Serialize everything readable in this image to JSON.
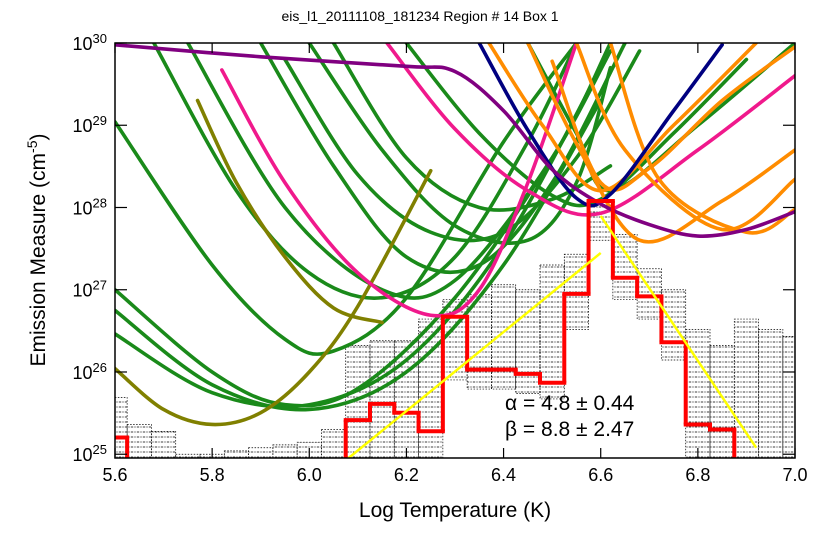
{
  "chart_data": {
    "type": "line",
    "title": "eis_l1_20111108_181234 Region # 14 Box 1",
    "x_label": "Log Temperature (K)",
    "y_label": {
      "text": "Emission Measure (cm",
      "superscript": "-5",
      "suffix": ")"
    },
    "yscale": "log",
    "xlim": [
      5.6,
      7.0
    ],
    "ylim": [
      9e+24,
      1e+30
    ],
    "xticks": [
      5.6,
      5.8,
      {
        "value": 6.0,
        "label": "6.0"
      },
      6.2,
      6.4,
      6.6,
      6.8,
      {
        "value": 7.0,
        "label": "7.0"
      }
    ],
    "yticks": [
      {
        "value": 1e+25,
        "label": "10",
        "exponent": "25"
      },
      {
        "value": 1e+26,
        "label": "10",
        "exponent": "26"
      },
      {
        "value": 1e+27,
        "label": "10",
        "exponent": "27"
      },
      {
        "value": 1e+28,
        "label": "10",
        "exponent": "28"
      },
      {
        "value": 1e+29,
        "label": "10",
        "exponent": "29"
      },
      {
        "value": 1e+30,
        "label": "10",
        "exponent": "30"
      }
    ],
    "mc_range": {
      "color": "#000000",
      "x": [
        5.6,
        5.65,
        5.7,
        5.75,
        5.8,
        5.85,
        5.9,
        5.95,
        6.0,
        6.05,
        6.1,
        6.15,
        6.2,
        6.25,
        6.3,
        6.35,
        6.4,
        6.45,
        6.5,
        6.55,
        6.6,
        6.65,
        6.7,
        6.75,
        6.8,
        6.85,
        6.9,
        6.95,
        7.0
      ],
      "low": [
        1e+24,
        1e+24,
        1e+24,
        1e+24,
        1e+24,
        1e+24,
        1e+24,
        1e+24,
        1e+24,
        1e+24,
        1e+24,
        1e+24,
        1e+24,
        1e+24,
        8e+25,
        6.2e+25,
        6.2e+25,
        5.5e+25,
        4.7e+25,
        3.3e+26,
        4e+27,
        7.6e+26,
        4.4e+26,
        1.4e+26,
        1e+24,
        1e+24,
        1e+24,
        1e+24,
        1e+24
      ],
      "high": [
        4.9e+25,
        2.3e+25,
        1.9e+25,
        1e+25,
        1e+25,
        1.1e+25,
        1.2e+25,
        1.3e+25,
        1.4e+25,
        2e+25,
        2.1e+26,
        2.4e+26,
        2.4e+26,
        4.4e+26,
        7.6e+26,
        8.7e+26,
        1.15e+27,
        1e+27,
        2e+27,
        2.7e+27,
        1.07e+28,
        4.7e+27,
        1.8e+27,
        1e+27,
        3.3e+26,
        2.1e+26,
        4.4e+26,
        3.3e+26,
        2.7e+26
      ]
    },
    "series": [
      {
        "color": "#1a8a1a",
        "x": [
          5.6,
          5.8,
          5.95,
          6.05,
          6.2,
          6.4,
          6.55
        ],
        "values": [
          1.1e+29,
          2e+27,
          2.5e+26,
          1.8e+26,
          8e+26,
          6.3e+28,
          1e+30
        ]
      },
      {
        "color": "#1a8a1a",
        "x": [
          5.6,
          5.8,
          5.95,
          6.1,
          6.3,
          6.5,
          6.62
        ],
        "values": [
          1e+27,
          1e+26,
          4e+25,
          6.3e+25,
          8e+26,
          4e+28,
          8e+29
        ]
      },
      {
        "color": "#1a8a1a",
        "x": [
          5.6,
          5.8,
          6.0,
          6.2,
          6.4,
          6.6
        ],
        "values": [
          5.6e+26,
          7e+25,
          3.5e+25,
          1e+26,
          2e+27,
          2e+29
        ]
      },
      {
        "color": "#1a8a1a",
        "x": [
          5.6,
          5.8,
          6.0,
          6.2,
          6.4,
          6.6
        ],
        "values": [
          2.9e+26,
          5.6e+25,
          4e+25,
          1.4e+26,
          3.5e+27,
          5e+29
        ]
      },
      {
        "color": "#1a8a1a",
        "x": [
          5.68,
          5.85,
          6.0,
          6.15,
          6.3,
          6.45,
          6.55
        ],
        "values": [
          1e+30,
          1.6e+28,
          1.6e+27,
          8e+26,
          2.5e+27,
          6.3e+28,
          1e+30
        ]
      },
      {
        "color": "#1a8a1a",
        "x": [
          5.75,
          5.95,
          6.15,
          6.3,
          6.5,
          6.62
        ],
        "values": [
          1e+30,
          1e+28,
          1e+27,
          1.3e+27,
          4e+28,
          1e+30
        ]
      },
      {
        "color": "#1a8a1a",
        "x": [
          5.9,
          6.05,
          6.2,
          6.35,
          6.5,
          6.65
        ],
        "values": [
          1e+30,
          3.2e+28,
          2.5e+27,
          2e+27,
          2e+28,
          1e+30
        ]
      },
      {
        "color": "#1a8a1a",
        "x": [
          5.95,
          6.1,
          6.25,
          6.4,
          6.55,
          6.68
        ],
        "values": [
          6.3e+29,
          2.5e+28,
          5e+27,
          5e+27,
          4e+28,
          8e+29
        ]
      },
      {
        "color": "#1a8a1a",
        "x": [
          6.05,
          6.2,
          6.35,
          6.5,
          6.62
        ],
        "values": [
          1e+30,
          4e+28,
          1e+28,
          1.26e+28,
          3.2e+28
        ]
      },
      {
        "color": "#1a8a1a",
        "x": [
          6.2,
          6.35,
          6.5,
          6.6,
          6.75,
          6.9
        ],
        "values": [
          1e+30,
          8e+28,
          1.4e+28,
          1.26e+28,
          8e+28,
          6.3e+29
        ]
      },
      {
        "color": "#1a8a1a",
        "x": [
          6.45,
          6.55,
          6.62,
          6.8,
          7.0
        ],
        "values": [
          1e+30,
          8e+28,
          1.6e+28,
          1e+29,
          1e+30
        ]
      },
      {
        "color": "#1a8a1a",
        "x": [
          6.0,
          6.15,
          6.3,
          6.45,
          6.55,
          6.62
        ],
        "values": [
          1e+30,
          5e+28,
          6e+27,
          4e+27,
          2e+28,
          5e+29
        ]
      },
      {
        "color": "#808000",
        "x": [
          5.6,
          5.7,
          5.8,
          5.9,
          6.0,
          6.1,
          6.25
        ],
        "values": [
          1.1e+26,
          3.5e+25,
          2.3e+25,
          3.2e+25,
          1e+26,
          6.3e+26,
          2.8e+28
        ]
      },
      {
        "color": "#808000",
        "x": [
          5.77,
          5.85,
          5.95,
          6.05,
          6.15
        ],
        "values": [
          2e+29,
          2e+28,
          2.5e+27,
          6e+26,
          4e+26
        ]
      },
      {
        "color": "#f0198c",
        "x": [
          5.82,
          5.95,
          6.1,
          6.25,
          6.35,
          6.45,
          6.55
        ],
        "values": [
          4.7e+29,
          2e+28,
          1.6e+27,
          4.9e+26,
          1e+27,
          2e+28,
          1e+30
        ]
      },
      {
        "color": "#f0198c",
        "x": [
          6.16,
          6.3,
          6.45,
          6.6,
          6.8,
          7.0
        ],
        "values": [
          1e+30,
          9e+28,
          1.6e+28,
          8.5e+27,
          5e+28,
          4e+29
        ]
      },
      {
        "color": "#ff8c00",
        "x": [
          6.37,
          6.48,
          6.6,
          6.75,
          6.92
        ],
        "values": [
          1e+30,
          1e+29,
          1.6e+28,
          1e+29,
          1e+30
        ]
      },
      {
        "color": "#ff8c00",
        "x": [
          6.45,
          6.55,
          6.68,
          6.85,
          7.0
        ],
        "values": [
          1e+30,
          6e+28,
          4e+27,
          1.2e+28,
          5e+28
        ]
      },
      {
        "color": "#ff8c00",
        "x": [
          6.55,
          6.65,
          6.85,
          7.0
        ],
        "values": [
          1e+30,
          5e+28,
          5.4e+27,
          2.2e+28
        ]
      },
      {
        "color": "#ff8c00",
        "x": [
          6.5,
          6.6,
          6.7,
          6.85,
          7.0
        ],
        "values": [
          6e+29,
          2e+28,
          3e+28,
          2e+29,
          9e+29
        ]
      },
      {
        "color": "#ff8c00",
        "x": [
          6.62,
          6.72,
          6.9,
          7.0
        ],
        "values": [
          1e+30,
          2.2e+28,
          5e+27,
          9.5e+27
        ]
      },
      {
        "color": "#000080",
        "x": [
          6.35,
          6.45,
          6.55,
          6.62,
          6.75,
          6.85
        ],
        "values": [
          1e+30,
          8.7e+28,
          1.3e+28,
          1.45e+28,
          1.5e+29,
          9.5e+29
        ]
      },
      {
        "color": "#800080",
        "x": [
          5.6,
          5.9,
          6.2,
          6.3,
          6.4,
          6.5,
          6.6,
          6.7,
          6.8,
          6.9,
          7.0
        ],
        "values": [
          9.5e+29,
          6.8e+29,
          5.2e+29,
          4.5e+29,
          1.5e+29,
          2.9e+28,
          1.1e+28,
          6.2e+27,
          4.5e+27,
          5.4e+27,
          8.9e+27
        ]
      }
    ],
    "histogram": {
      "color": "#ff0000",
      "bins": [
        5.575,
        5.625,
        5.675,
        5.725,
        5.775,
        5.825,
        5.875,
        5.925,
        5.975,
        6.025,
        6.075,
        6.125,
        6.175,
        6.225,
        6.275,
        6.325,
        6.375,
        6.425,
        6.475,
        6.525,
        6.575,
        6.625,
        6.675,
        6.725,
        6.775,
        6.825,
        6.875,
        6.925
      ],
      "values": [
        1.6e+25,
        1e+24,
        1e+24,
        1e+24,
        1e+24,
        1e+24,
        1e+24,
        1e+24,
        1e+24,
        1e+24,
        2.6e+25,
        4.1e+25,
        3.2e+25,
        1.9e+25,
        4.7e+26,
        1.07e+26,
        1.07e+26,
        9.5e+25,
        7.4e+25,
        8.9e+26,
        1.2e+28,
        1.4e+27,
        8.3e+26,
        2.3e+26,
        2.3e+25,
        2e+25,
        1e+24
      ]
    },
    "fits": [
      {
        "color": "#ffff00",
        "x": [
          6.08,
          6.6
        ],
        "values": [
          8.9e+24,
          2.8e+27
        ]
      },
      {
        "color": "#ffff00",
        "x": [
          6.6,
          6.92
        ],
        "values": [
          7.9e+27,
          1.2e+25
        ]
      }
    ],
    "annotations": [
      "α = 4.8 ± 0.44",
      "β = 8.8 ± 2.47"
    ]
  }
}
